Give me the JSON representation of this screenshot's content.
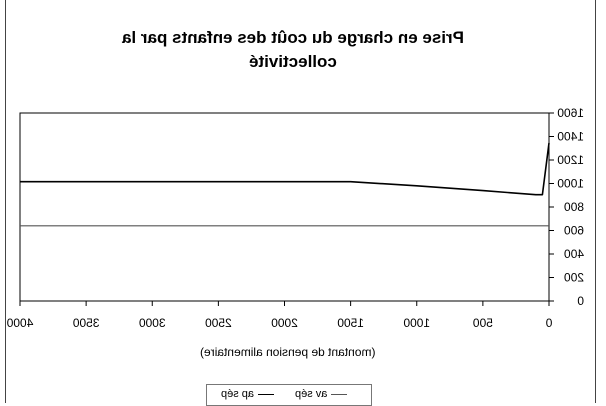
{
  "chart_data": {
    "type": "line",
    "title_lines": [
      "Prise en charge du coût des enfants par la",
      "collectivité"
    ],
    "xlabel": "(montant de pension alimentaire)",
    "ylabel": "",
    "x_ticks": [
      4000,
      3500,
      3000,
      2500,
      2000,
      1500,
      1000,
      500,
      0
    ],
    "y_ticks": [
      0,
      200,
      400,
      600,
      800,
      1000,
      1200,
      1400,
      1600
    ],
    "xlim": [
      4000,
      0
    ],
    "ylim": [
      0,
      1600
    ],
    "x_axis_reversed": true,
    "y_axis_position": "right",
    "grid": false,
    "legend_position": "bottom",
    "series": [
      {
        "name": "av sép",
        "color": "#555555",
        "points": [
          [
            4000,
            640
          ],
          [
            0,
            640
          ]
        ]
      },
      {
        "name": "ap sép",
        "color": "#000000",
        "points": [
          [
            4000,
            1015
          ],
          [
            1500,
            1015
          ],
          [
            1000,
            980
          ],
          [
            500,
            940
          ],
          [
            100,
            905
          ],
          [
            50,
            905
          ],
          [
            0,
            1345
          ]
        ]
      }
    ]
  }
}
